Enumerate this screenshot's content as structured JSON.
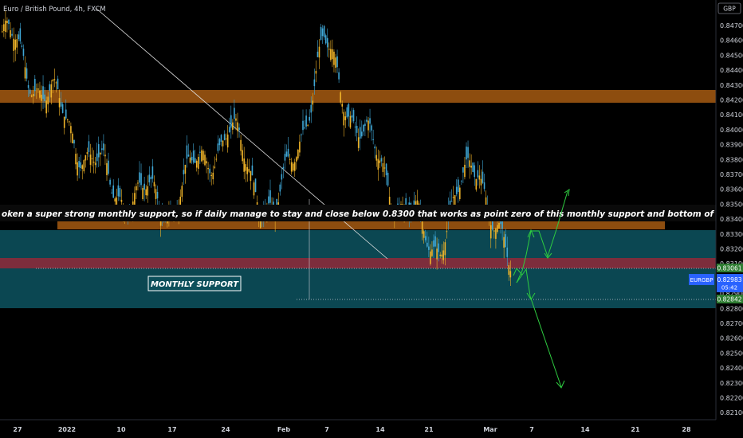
{
  "header": {
    "symbol_title": "Euro / British Pound, 4h, FXCM",
    "currency": "GBP"
  },
  "annotation": {
    "banner_text": "oken a super strong monthly support, so if daily manage to stay and close below  0.8300 that works as point zero of this monthly support and bottom of",
    "monthly_support_label": "MONTHLY SUPPORT"
  },
  "price_axis": {
    "ticks": [
      "0.84700",
      "0.84600",
      "0.84500",
      "0.84400",
      "0.84300",
      "0.84200",
      "0.84100",
      "0.84000",
      "0.83900",
      "0.83800",
      "0.83700",
      "0.83600",
      "0.83500",
      "0.83400",
      "0.83300",
      "0.83200",
      "0.83100",
      "0.82900",
      "0.82800",
      "0.82700",
      "0.82600",
      "0.82500",
      "0.82400",
      "0.82300",
      "0.82200",
      "0.82100"
    ],
    "level_tag_1": "0.83061",
    "symbol_tag": "EURGBP",
    "price_tag": "0.82983",
    "countdown": "05:42",
    "level_tag_2": "0.82842"
  },
  "time_axis": {
    "ticks": [
      "27",
      "2022",
      "10",
      "17",
      "24",
      "Feb",
      "7",
      "14",
      "21",
      "Mar",
      "7",
      "14",
      "21",
      "28"
    ]
  },
  "colors": {
    "bull": "#f0b429",
    "bear": "#3fa7d6",
    "resistance_zone": "#a65a12",
    "support_zone": "#0c4f5b",
    "red_band": "#8a2a3a",
    "arrows": "#2ecc40"
  },
  "chart_data": {
    "type": "candlestick",
    "title": "Euro / British Pound, 4h, FXCM",
    "ylim": [
      0.8205,
      0.8478
    ],
    "approx_close_path": [
      {
        "date": "Dec 27",
        "price": 0.846
      },
      {
        "date": "Jan 3",
        "price": 0.8415
      },
      {
        "date": "Jan 10",
        "price": 0.836
      },
      {
        "date": "Jan 17",
        "price": 0.835
      },
      {
        "date": "Jan 24",
        "price": 0.84
      },
      {
        "date": "Jan 31",
        "price": 0.834
      },
      {
        "date": "Feb 7",
        "price": 0.8455
      },
      {
        "date": "Feb 14",
        "price": 0.838
      },
      {
        "date": "Feb 21",
        "price": 0.832
      },
      {
        "date": "Feb 28",
        "price": 0.838
      },
      {
        "date": "Mar 4",
        "price": 0.8298
      }
    ],
    "last_price": 0.82983,
    "levels": [
      0.83061,
      0.82842
    ]
  }
}
